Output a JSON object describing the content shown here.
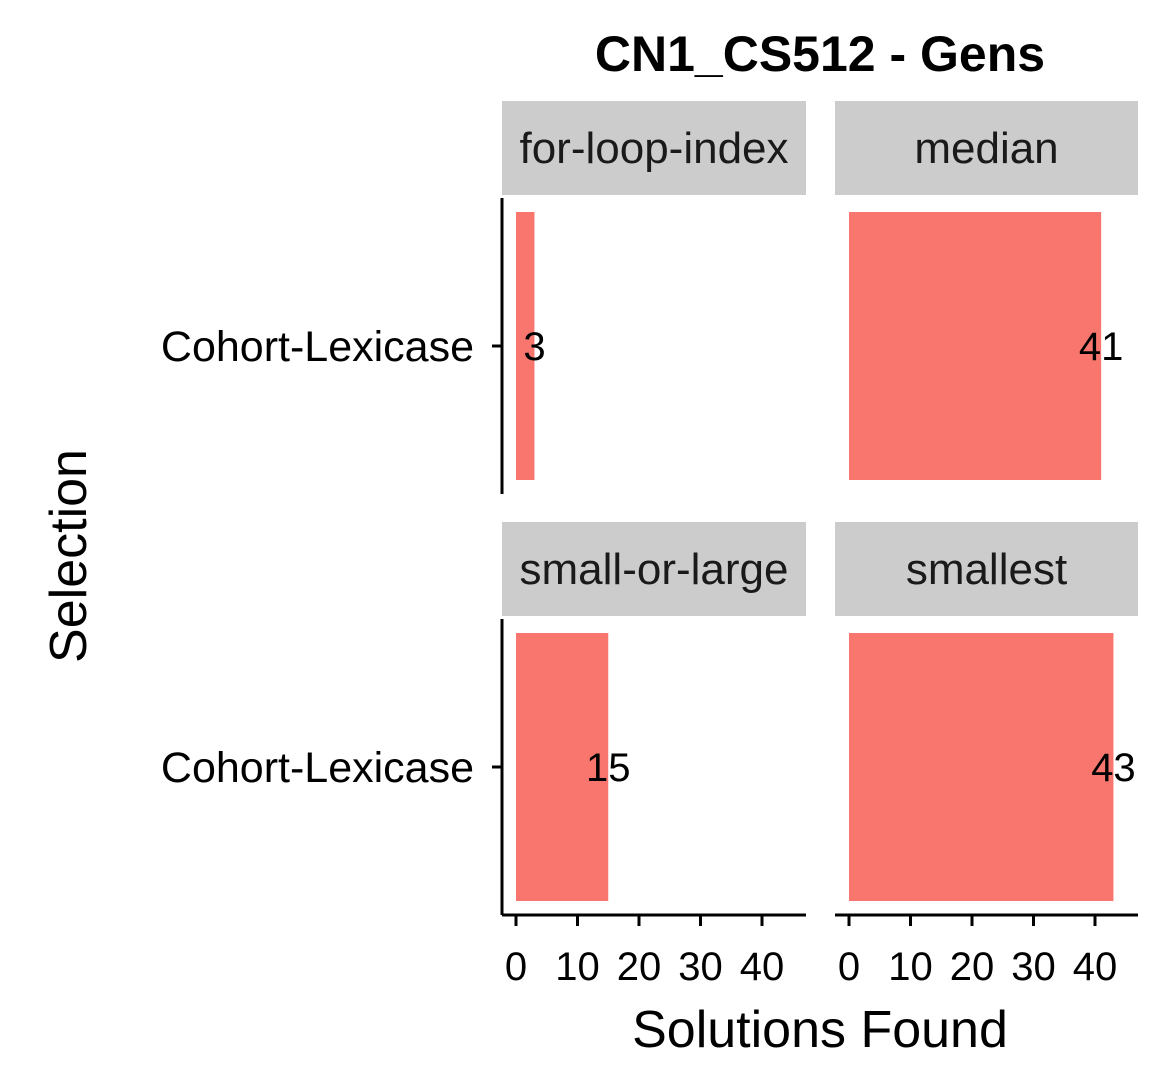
{
  "chart_data": {
    "type": "bar",
    "orientation": "horizontal",
    "title": "CN1_CS512 - Gens",
    "xlabel": "Solutions Found",
    "ylabel": "Selection",
    "xlim": [
      0,
      45
    ],
    "xticks": [
      0,
      10,
      20,
      30,
      40
    ],
    "categories": [
      "Cohort-Lexicase"
    ],
    "facets": [
      {
        "name": "for-loop-index",
        "values": [
          3
        ]
      },
      {
        "name": "median",
        "values": [
          41
        ]
      },
      {
        "name": "small-or-large",
        "values": [
          15
        ]
      },
      {
        "name": "smallest",
        "values": [
          43
        ]
      }
    ],
    "bar_color": "#F8766D",
    "strip_color": "#CCCCCC",
    "grid": false
  }
}
